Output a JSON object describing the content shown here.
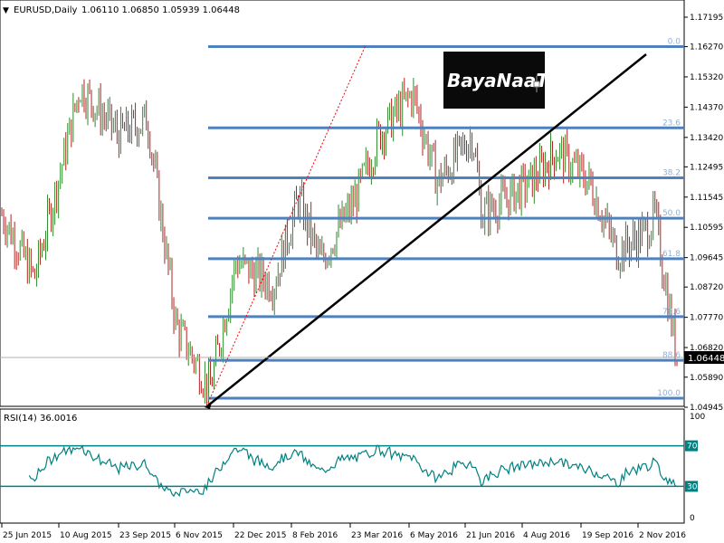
{
  "header": {
    "symbol_arrow": "▼",
    "symbol": "EURUSD,Daily",
    "ohlc": "1.06110 1.06850 1.05939 1.06448"
  },
  "watermark": {
    "text": "BayaNaaT.net"
  },
  "price_axis": {
    "ticks": [
      "1.17195",
      "1.16270",
      "1.15320",
      "1.14370",
      "1.13420",
      "1.12495",
      "1.11545",
      "1.10595",
      "1.09645",
      "1.08720",
      "1.07770",
      "1.06820",
      "1.05890",
      "1.04945"
    ],
    "current_price": "1.06448"
  },
  "fib": {
    "labels": [
      "0.0",
      "23.6",
      "38.2",
      "50.0",
      "61.8",
      "78.6",
      "88.6",
      "100.0"
    ],
    "values": [
      1.1627,
      1.1372,
      1.1215,
      1.1088,
      1.0961,
      1.0779,
      1.0642,
      1.0523
    ]
  },
  "rsi": {
    "title": "RSI(14) 36.0016",
    "axis_ticks": [
      "100",
      "70",
      "30",
      "0"
    ],
    "level_labels": [
      "70",
      "30"
    ]
  },
  "date_axis": {
    "labels": [
      "25 Jun 2015",
      "10 Aug 2015",
      "23 Sep 2015",
      "6 Nov 2015",
      "22 Dec 2015",
      "8 Feb 2016",
      "23 Mar 2016",
      "6 May 2016",
      "21 Jun 2016",
      "4 Aug 2016",
      "19 Sep 2016",
      "2 Nov 2016"
    ]
  },
  "colors": {
    "bull": "#2e8b2e",
    "bear": "#b22222",
    "fib_line": "#4f81bd",
    "fib_label": "#8fb0d6",
    "rsi_line": "#008080",
    "trend": "#000000",
    "fib_diag": "#ff0000"
  },
  "chart_data": {
    "type": "candlestick",
    "instrument": "EURUSD",
    "timeframe": "Daily",
    "last_close": 1.06448,
    "ylim": [
      1.0485,
      1.1765
    ],
    "x_range": [
      "2015-06-25",
      "2016-11-25"
    ],
    "series": [
      {
        "name": "EURUSD Daily close (approx.)",
        "x": [
          "2015-06-25",
          "2015-07-20",
          "2015-08-10",
          "2015-08-24",
          "2015-09-23",
          "2015-10-15",
          "2015-11-06",
          "2015-12-02",
          "2015-12-22",
          "2016-01-20",
          "2016-02-08",
          "2016-02-25",
          "2016-03-23",
          "2016-04-10",
          "2016-05-06",
          "2016-05-25",
          "2016-06-21",
          "2016-06-28",
          "2016-08-04",
          "2016-08-25",
          "2016-09-19",
          "2016-10-10",
          "2016-11-02",
          "2016-11-08",
          "2016-11-25"
        ],
        "values": [
          1.11,
          1.09,
          1.125,
          1.15,
          1.135,
          1.14,
          1.075,
          1.055,
          1.095,
          1.088,
          1.115,
          1.095,
          1.115,
          1.135,
          1.148,
          1.12,
          1.135,
          1.11,
          1.12,
          1.13,
          1.12,
          1.098,
          1.105,
          1.11,
          1.0645
        ]
      }
    ],
    "rsi": {
      "name": "RSI(14)",
      "last": 36.0016,
      "levels": [
        70,
        30
      ],
      "ylim": [
        0,
        100
      ]
    }
  }
}
